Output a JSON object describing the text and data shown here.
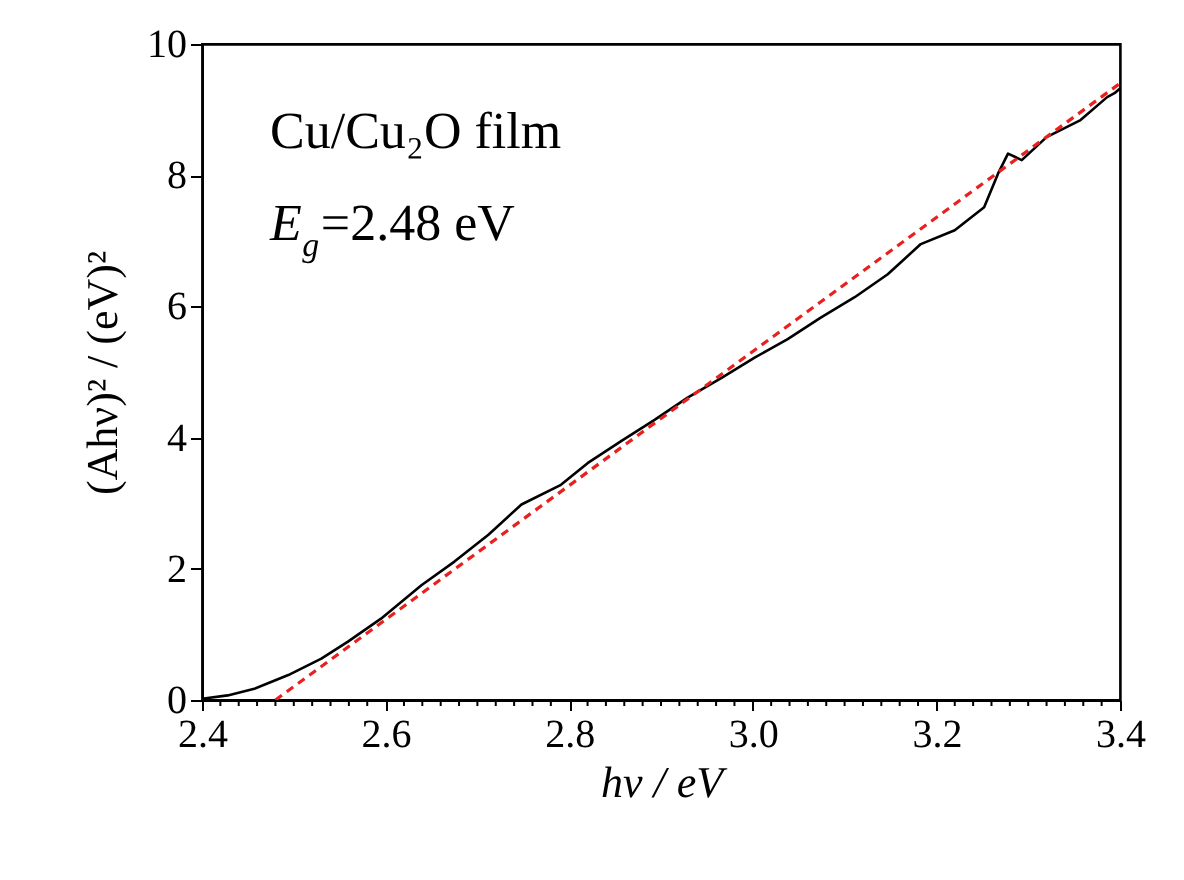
{
  "chart_data": {
    "type": "line",
    "xlabel": "hν / eV",
    "ylabel": "(Ahν)² / (eV)²",
    "annotations": [
      "Cu/Cu₂O film",
      "E$_{g}$=2.48 eV"
    ],
    "xlim": [
      2.4,
      3.4
    ],
    "xticks": [
      2.4,
      {
        "value": 2.42,
        "label": null
      },
      {
        "value": 2.44,
        "label": null
      },
      {
        "value": 2.46,
        "label": null
      },
      {
        "value": 2.48,
        "label": null
      },
      {
        "value": 2.5,
        "label": null
      },
      {
        "value": 2.52,
        "label": null
      },
      {
        "value": 2.54,
        "label": null
      },
      {
        "value": 2.56,
        "label": null
      },
      {
        "value": 2.58,
        "label": null
      },
      2.6,
      {
        "value": 2.62,
        "label": null
      },
      {
        "value": 2.64,
        "label": null
      },
      {
        "value": 2.66,
        "label": null
      },
      {
        "value": 2.68,
        "label": null
      },
      {
        "value": 2.7,
        "label": null
      },
      {
        "value": 2.72,
        "label": null
      },
      {
        "value": 2.74,
        "label": null
      },
      {
        "value": 2.76,
        "label": null
      },
      {
        "value": 2.78,
        "label": null
      },
      2.8,
      {
        "value": 2.82,
        "label": null
      },
      {
        "value": 2.84,
        "label": null
      },
      {
        "value": 2.86,
        "label": null
      },
      {
        "value": 2.88,
        "label": null
      },
      {
        "value": 2.9,
        "label": null
      },
      {
        "value": 2.92,
        "label": null
      },
      {
        "value": 2.94,
        "label": null
      },
      {
        "value": 2.96,
        "label": null
      },
      {
        "value": 2.98,
        "label": null
      },
      {
        "value": 3.0,
        "label": "3.0"
      },
      {
        "value": 3.02,
        "label": null
      },
      {
        "value": 3.04,
        "label": null
      },
      {
        "value": 3.06,
        "label": null
      },
      {
        "value": 3.08,
        "label": null
      },
      {
        "value": 3.1,
        "label": null
      },
      {
        "value": 3.12,
        "label": null
      },
      {
        "value": 3.14,
        "label": null
      },
      {
        "value": 3.16,
        "label": null
      },
      {
        "value": 3.18,
        "label": null
      },
      3.2,
      {
        "value": 3.22,
        "label": null
      },
      {
        "value": 3.24,
        "label": null
      },
      {
        "value": 3.26,
        "label": null
      },
      {
        "value": 3.28,
        "label": null
      },
      {
        "value": 3.3,
        "label": null
      },
      {
        "value": 3.32,
        "label": null
      },
      {
        "value": 3.34,
        "label": null
      },
      {
        "value": 3.36,
        "label": null
      },
      {
        "value": 3.38,
        "label": null
      },
      3.4
    ],
    "ylim": [
      0,
      10
    ],
    "yticks": [
      0,
      2,
      4,
      6,
      8,
      10
    ],
    "grid": false,
    "series": [
      {
        "color": "#000000",
        "line_style": "solid",
        "x": [
          2.4,
          2.428,
          2.457,
          2.494,
          2.53,
          2.559,
          2.595,
          2.639,
          2.675,
          2.712,
          2.748,
          2.791,
          2.82,
          2.857,
          2.893,
          2.929,
          2.966,
          3.002,
          3.038,
          3.074,
          3.111,
          3.147,
          3.183,
          3.22,
          3.252,
          3.267,
          3.278,
          3.293,
          3.32,
          3.357,
          3.386,
          3.394,
          3.4
        ],
        "values": [
          0.02,
          0.07,
          0.17,
          0.38,
          0.63,
          0.89,
          1.24,
          1.75,
          2.11,
          2.52,
          2.98,
          3.28,
          3.61,
          3.95,
          4.27,
          4.61,
          4.91,
          5.22,
          5.5,
          5.83,
          6.14,
          6.49,
          6.95,
          7.16,
          7.51,
          8.02,
          8.33,
          8.23,
          8.58,
          8.84,
          9.19,
          9.25,
          9.32
        ]
      },
      {
        "type": "line",
        "color": "#e8211f",
        "line_style": "dashed",
        "x": [
          2.48,
          3.4
        ],
        "values": [
          0,
          9.4
        ]
      }
    ]
  }
}
